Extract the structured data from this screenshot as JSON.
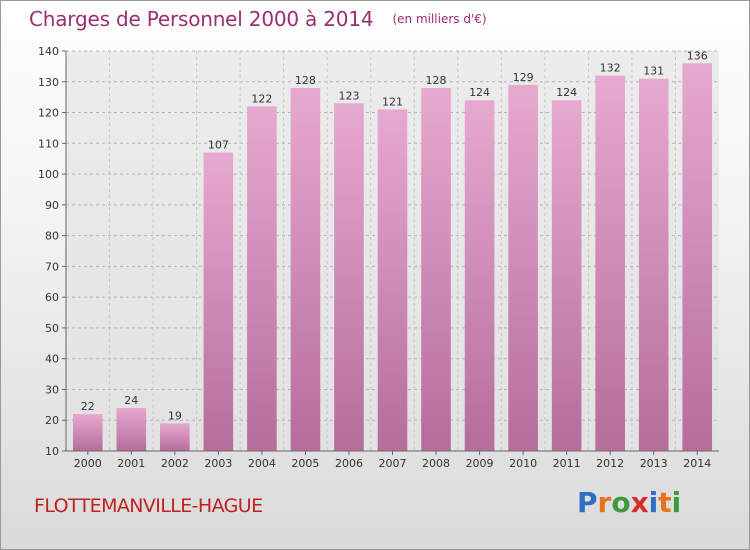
{
  "title": "Charges de Personnel 2000 à 2014",
  "subtitle": "(en milliers d'€)",
  "place": "FLOTTEMANVILLE-HAGUE",
  "logo": {
    "letters": [
      "P",
      "r",
      "o",
      "x",
      "i",
      "t",
      "i"
    ],
    "colors": [
      "#2f6fc2",
      "#e8731d",
      "#3c9a3c",
      "#d92b2b",
      "#2f6fc2",
      "#e8731d",
      "#3c9a3c"
    ]
  },
  "colors": {
    "bar_top": "#e6a9d0",
    "bar_bottom": "#b56d9b",
    "title": "#9b2f70",
    "place": "#c02020"
  },
  "chart_data": {
    "type": "bar",
    "title": "Charges de Personnel 2000 à 2014",
    "subtitle": "(en milliers d'€)",
    "categories": [
      "2000",
      "2001",
      "2002",
      "2003",
      "2004",
      "2005",
      "2006",
      "2007",
      "2008",
      "2009",
      "2010",
      "2011",
      "2012",
      "2013",
      "2014"
    ],
    "values": [
      22,
      24,
      19,
      107,
      122,
      128,
      123,
      121,
      128,
      124,
      129,
      124,
      132,
      131,
      136
    ],
    "ylim": [
      10,
      140
    ],
    "yticks": [
      10,
      20,
      30,
      40,
      50,
      60,
      70,
      80,
      90,
      100,
      110,
      120,
      130,
      140
    ],
    "grid": true,
    "data_labels": true
  }
}
